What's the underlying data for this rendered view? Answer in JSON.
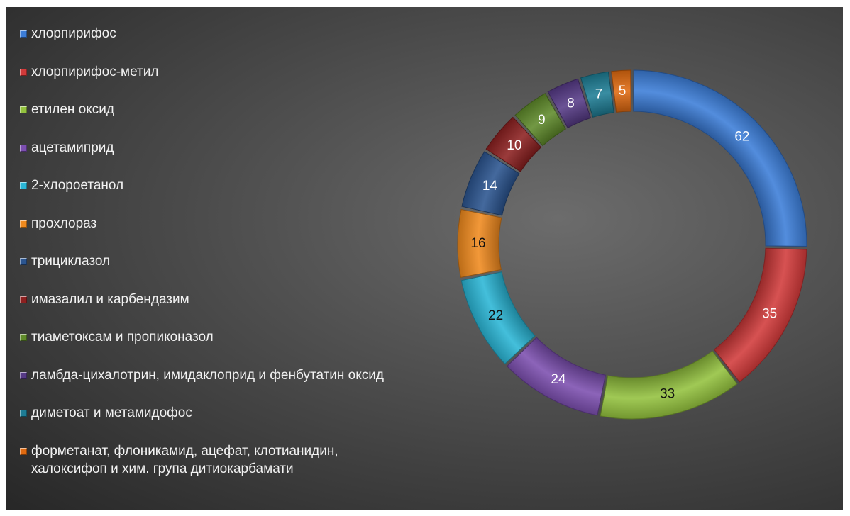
{
  "chart_data": {
    "type": "pie",
    "variant": "doughnut",
    "title": "",
    "legend_position": "left",
    "categories": [
      "хлорпирифос",
      "хлорпирифос-метил",
      "етилен оксид",
      "ацетамиприд",
      "2-хлороетанол",
      "прохлораз",
      "трициклазол",
      "имазалил и карбендазим",
      "тиаметоксам и пропиконазол",
      "ламбда-цихалотрин, имидаклоприд и фенбутатин оксид",
      "диметоат и метамидофос",
      "форметанат, флоникамид, ацефат, клотианидин,\nхалоксифоп и хим. група дитиокарбамати"
    ],
    "values": [
      62,
      35,
      33,
      24,
      22,
      16,
      14,
      10,
      9,
      8,
      7,
      5
    ],
    "data_labels": [
      "62",
      "35",
      "33",
      "24",
      "22",
      "16",
      "14",
      "10",
      "9",
      "8",
      "7",
      "5"
    ],
    "colors": [
      "#3c7dd8",
      "#d23a3a",
      "#93c23e",
      "#7c4fb0",
      "#2ab6d6",
      "#f08a1e",
      "#2b5590",
      "#8c2020",
      "#5f8a2a",
      "#563a86",
      "#1e7d95",
      "#e06a10"
    ],
    "label_colors": [
      "#ffffff",
      "#ffffff",
      "#111111",
      "#ffffff",
      "#111111",
      "#111111",
      "#ffffff",
      "#ffffff",
      "#ffffff",
      "#ffffff",
      "#ffffff",
      "#ffffff"
    ]
  }
}
